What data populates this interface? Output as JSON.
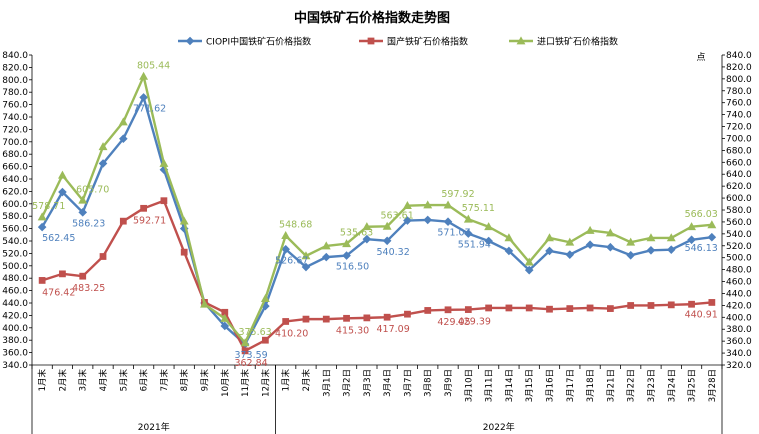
{
  "chart_data": {
    "type": "line",
    "title": "中国铁矿石价格指数走势图",
    "unit_label": "点",
    "x": [
      "1月末",
      "2月末",
      "3月末",
      "4月末",
      "5月末",
      "6月末",
      "7月末",
      "8月末",
      "9月末",
      "10月末",
      "11月末",
      "12月末",
      "1月末",
      "2月末",
      "3月1日",
      "3月2日",
      "3月3日",
      "3月4日",
      "3月7日",
      "3月8日",
      "3月9日",
      "3月10日",
      "3月11日",
      "3月14日",
      "3月15日",
      "3月16日",
      "3月17日",
      "3月18日",
      "3月21日",
      "3月22日",
      "3月23日",
      "3月24日",
      "3月25日",
      "3月28日"
    ],
    "groups": [
      {
        "label": "2021年",
        "start": 0,
        "end": 11
      },
      {
        "label": "2022年",
        "start": 12,
        "end": 33
      }
    ],
    "ylim": [
      340,
      840
    ],
    "ytick_step": 20,
    "y2lim": [
      320,
      840
    ],
    "y2tick_step": 20,
    "legend_position": "top",
    "series": [
      {
        "name": "CIOPI中国铁矿石价格指数",
        "color": "#4F81BD",
        "marker": "diamond",
        "values": [
          562.45,
          619,
          586.23,
          665,
          705,
          771.62,
          655,
          560,
          440,
          403,
          373.59,
          435,
          526.67,
          498,
          514,
          516.5,
          543,
          540.32,
          573,
          574,
          571.07,
          551.94,
          540,
          524,
          493,
          524,
          518,
          534,
          530,
          517,
          525,
          526,
          542,
          546.13
        ],
        "labels": {
          "0": "562.45",
          "2": "586.23",
          "5": "771.62",
          "10": "373.59",
          "12": "526.67",
          "15": "516.50",
          "17": "540.32",
          "20": "571.07",
          "21": "551.94",
          "33": "546.13"
        }
      },
      {
        "name": "国产铁矿石价格指数",
        "color": "#C0504D",
        "marker": "square",
        "values": [
          476.42,
          487,
          483.25,
          515,
          572,
          592.71,
          605,
          522,
          441,
          425,
          362.84,
          380,
          410.2,
          414,
          414,
          415.3,
          416,
          417.09,
          422,
          428,
          429.05,
          429.39,
          432,
          432,
          432,
          430,
          431,
          432,
          431,
          436,
          436,
          437,
          438,
          440.91
        ],
        "labels": {
          "0": "476.42",
          "2": "483.25",
          "5": "592.71",
          "10": "362.84",
          "12": "410.20",
          "15": "415.30",
          "17": "417.09",
          "20": "429.05",
          "21": "429.39",
          "33": "440.91"
        }
      },
      {
        "name": "进口铁矿石价格指数",
        "color": "#9BBB59",
        "marker": "triangle",
        "values": [
          578.71,
          646,
          605.7,
          692,
          732,
          805.44,
          665,
          572,
          438,
          415,
          375.63,
          447,
          548.68,
          516,
          532,
          535.63,
          563,
          563.61,
          597,
          598,
          597.92,
          575.11,
          563,
          545,
          506,
          545,
          538,
          557,
          553,
          538,
          545,
          545,
          563,
          566.03
        ],
        "labels": {
          "0": "578.71",
          "2": "605.70",
          "5": "805.44",
          "10": "375.63",
          "12": "548.68",
          "15": "535.63",
          "17": "563.61",
          "20": "597.92",
          "21": "575.11",
          "33": "566.03"
        }
      }
    ]
  }
}
